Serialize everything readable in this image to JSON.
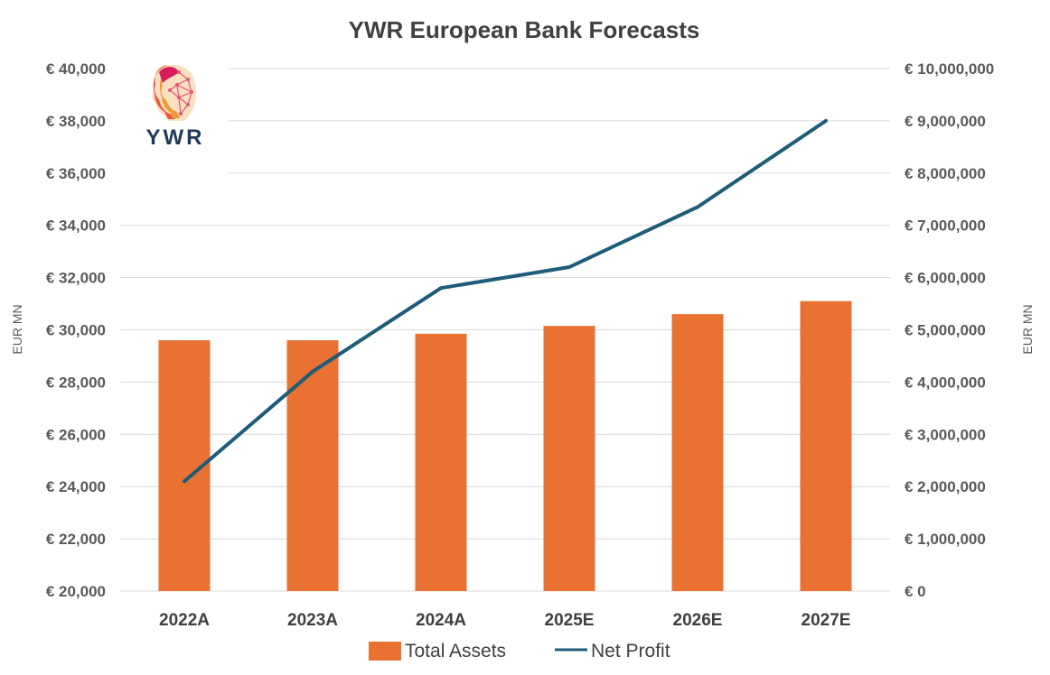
{
  "colors": {
    "bar": "#e97132",
    "line": "#1f5c7a",
    "grid": "#d9d9d9",
    "logo_text": "#1f3a5a"
  },
  "logo": {
    "text": "YWR",
    "icon": "head-network-icon"
  },
  "chart_data": {
    "type": "bar+line",
    "title": "YWR European Bank Forecasts",
    "categories": [
      "2022A",
      "2023A",
      "2024A",
      "2025E",
      "2026E",
      "2027E"
    ],
    "series": [
      {
        "name": "Total Assets",
        "type": "bar",
        "axis": "left",
        "values": [
          29600,
          29600,
          29850,
          30150,
          30600,
          31100
        ]
      },
      {
        "name": "Net Profit",
        "type": "line",
        "axis": "right",
        "values": [
          2100000,
          4200000,
          5800000,
          6200000,
          7350000,
          9000000
        ]
      }
    ],
    "y_left": {
      "label": "EUR MN",
      "ylim": [
        20000,
        40000
      ],
      "ticks": [
        20000,
        22000,
        24000,
        26000,
        28000,
        30000,
        32000,
        34000,
        36000,
        38000,
        40000
      ],
      "tick_labels": [
        "€ 20,000",
        "€ 22,000",
        "€ 24,000",
        "€ 26,000",
        "€ 28,000",
        "€ 30,000",
        "€ 32,000",
        "€ 34,000",
        "€ 36,000",
        "€ 38,000",
        "€ 40,000"
      ]
    },
    "y_right": {
      "label": "EUR MN",
      "ylim": [
        0,
        10000000
      ],
      "ticks": [
        0,
        1000000,
        2000000,
        3000000,
        4000000,
        5000000,
        6000000,
        7000000,
        8000000,
        9000000,
        10000000
      ],
      "tick_labels": [
        "€ 0",
        "€ 1,000,000",
        "€ 2,000,000",
        "€ 3,000,000",
        "€ 4,000,000",
        "€ 5,000,000",
        "€ 6,000,000",
        "€ 7,000,000",
        "€ 8,000,000",
        "€ 9,000,000",
        "€ 10,000,000"
      ]
    },
    "grid": true,
    "legend": {
      "position": "bottom",
      "entries": [
        "Total Assets",
        "Net Profit"
      ]
    }
  }
}
